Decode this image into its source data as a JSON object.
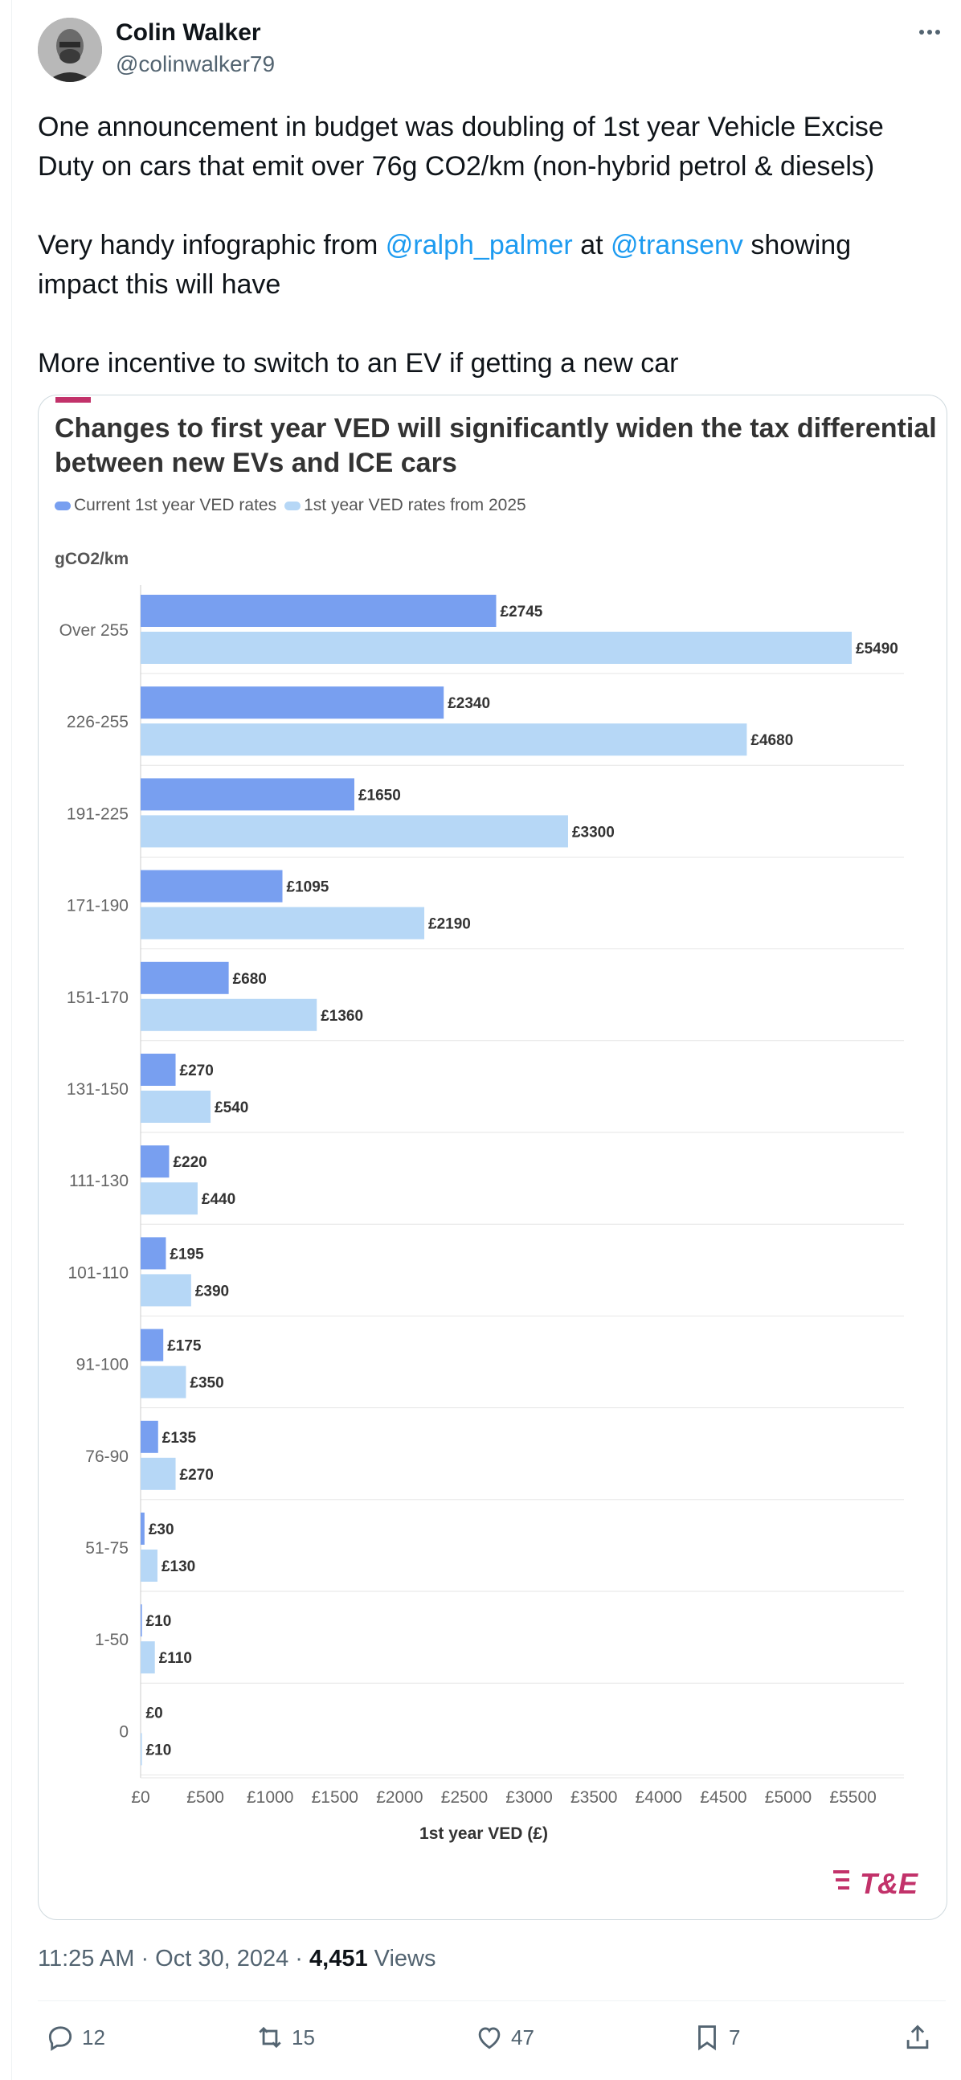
{
  "author": {
    "name": "Colin Walker",
    "handle": "@colinwalker79"
  },
  "tweet": {
    "paragraphs": [
      [
        {
          "t": "One announcement in budget was doubling of 1st year Vehicle Excise Duty on cars that emit over 76g CO2/km (non-hybrid petrol & diesels)",
          "mention": false
        }
      ],
      [
        {
          "t": "Very handy infographic from ",
          "mention": false
        },
        {
          "t": "@ralph_palmer",
          "mention": true
        },
        {
          "t": " at ",
          "mention": false
        },
        {
          "t": "@transenv",
          "mention": true
        },
        {
          "t": " showing impact this will have",
          "mention": false
        }
      ],
      [
        {
          "t": "More incentive to switch to an EV if getting a new car",
          "mention": false
        }
      ]
    ]
  },
  "chart_data": {
    "type": "bar",
    "orientation": "horizontal",
    "title": "Changes to first year VED will significantly widen the tax differential between new EVs and ICE cars",
    "ylabel": "gCO2/km",
    "xlabel": "1st year VED (£)",
    "xlim": [
      0,
      5900
    ],
    "xticks": [
      0,
      500,
      1000,
      1500,
      2000,
      2500,
      3000,
      3500,
      4000,
      4500,
      5000,
      5500
    ],
    "xtick_labels": [
      "£0",
      "£500",
      "£1000",
      "£1500",
      "£2000",
      "£2500",
      "£3000",
      "£3500",
      "£4000",
      "£4500",
      "£5000",
      "£5500"
    ],
    "grid": true,
    "legend_position": "top-left",
    "categories": [
      "Over 255",
      "226-255",
      "191-225",
      "171-190",
      "151-170",
      "131-150",
      "111-130",
      "101-110",
      "91-100",
      "76-90",
      "51-75",
      "1-50",
      "0"
    ],
    "series": [
      {
        "name": "Current 1st year VED rates",
        "color": "#789ff0",
        "values": [
          2745,
          2340,
          1650,
          1095,
          680,
          270,
          220,
          195,
          175,
          135,
          30,
          10,
          0
        ]
      },
      {
        "name": "1st year VED rates from 2025",
        "color": "#b6d7f6",
        "values": [
          5490,
          4680,
          3300,
          2190,
          1360,
          540,
          440,
          390,
          350,
          270,
          130,
          110,
          10
        ]
      }
    ],
    "data_labels": [
      [
        "£2745",
        "£2340",
        "£1650",
        "£1095",
        "£680",
        "£270",
        "£220",
        "£195",
        "£175",
        "£135",
        "£30",
        "£10",
        "£0"
      ],
      [
        "£5490",
        "£4680",
        "£3300",
        "£2190",
        "£1360",
        "£540",
        "£440",
        "£390",
        "£350",
        "£270",
        "£130",
        "£110",
        "£10"
      ]
    ],
    "logo_text": "T&E"
  },
  "colors": {
    "accent": "#c2326a",
    "link": "#1d9bf0",
    "secondary_text": "#536471",
    "logo": "#c2326a"
  },
  "meta": {
    "time": "11:25 AM",
    "date": "Oct 30, 2024",
    "views_count": "4,451",
    "views_label": "Views"
  },
  "actions": {
    "replies": "12",
    "reposts": "15",
    "likes": "47",
    "bookmarks": "7"
  },
  "icons": [
    "more-icon",
    "reply-icon",
    "repost-icon",
    "like-icon",
    "bookmark-icon",
    "share-icon"
  ]
}
